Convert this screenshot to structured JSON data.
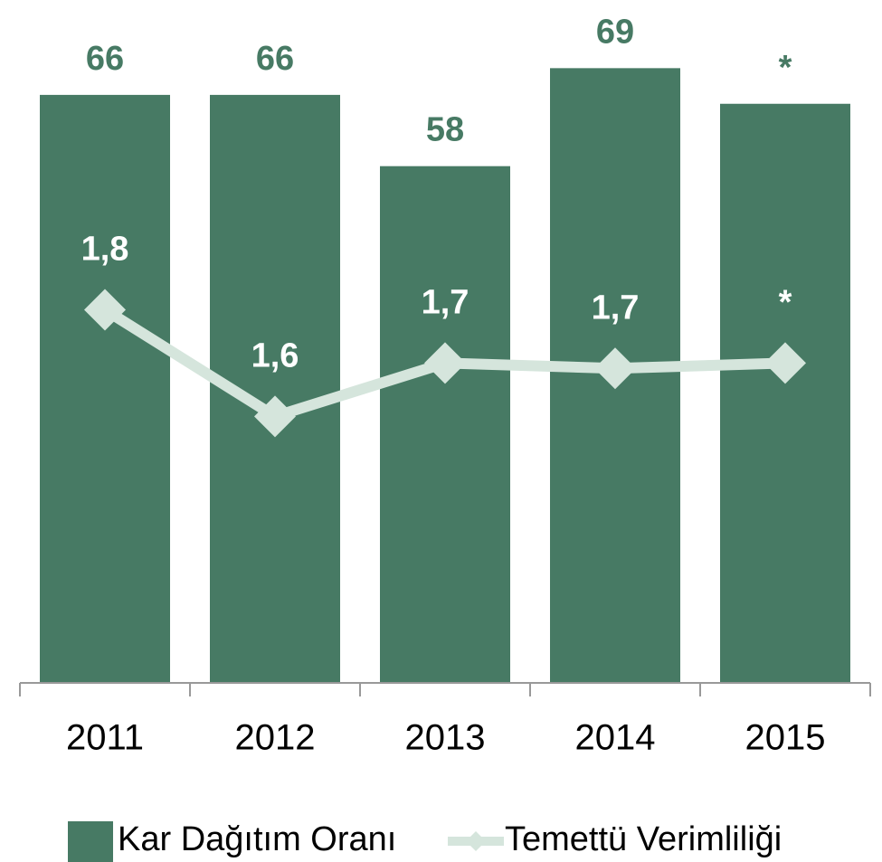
{
  "chart_data": {
    "type": "bar_line",
    "categories": [
      "2011",
      "2012",
      "2013",
      "2014",
      "2015"
    ],
    "series": [
      {
        "name": "Kar Dağıtım Oranı",
        "type": "bar",
        "color": "#477a64",
        "values": [
          66,
          66,
          58,
          69,
          65
        ],
        "value_labels": [
          "66",
          "66",
          "58",
          "69",
          "*"
        ]
      },
      {
        "name": "Temettü Verimliliği",
        "type": "line",
        "axis": "y2",
        "color": "#d5e5dc",
        "values": [
          1.8,
          1.6,
          1.7,
          1.69,
          1.7
        ],
        "value_labels": [
          "1,8",
          "1,6",
          "1,7",
          "1,7",
          "*"
        ]
      }
    ],
    "ylim": [
      0,
      70
    ],
    "y2lim": [
      1.1,
      2.27
    ]
  }
}
